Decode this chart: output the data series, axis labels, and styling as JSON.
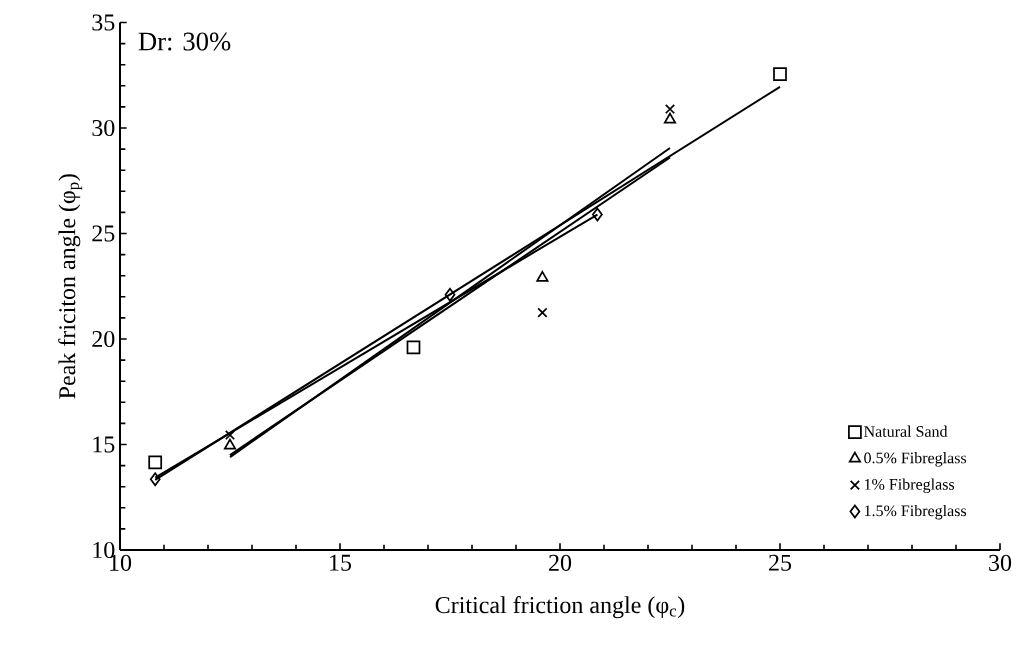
{
  "chart_data": {
    "type": "scatter",
    "xlabel": "Critical friction angle (φ$_{c}$)",
    "ylabel": "Peak friciton angle (φ$_{p}$)",
    "annotations": [
      "Dr: 30%"
    ],
    "xlim": [
      10,
      30
    ],
    "xticks": [
      10,
      15,
      20,
      25,
      30
    ],
    "ylim": [
      10,
      35
    ],
    "yticks": [
      10,
      15,
      20,
      25,
      30,
      35
    ],
    "grid": false,
    "legend": "bottom right",
    "series": [
      {
        "name": "Natural Sand",
        "color": "#000000",
        "marker": "square",
        "x": [
          10.8,
          16.67,
          25
        ],
        "values": [
          14.15,
          19.6,
          32.55
        ]
      },
      {
        "name": "0.5% Fibreglass",
        "color": "#000000",
        "marker": "triangle",
        "x": [
          12.5,
          19.6,
          22.5
        ],
        "values": [
          14.95,
          22.9,
          30.4
        ]
      },
      {
        "name": "1% Fibreglass",
        "color": "#000000",
        "marker": "cross",
        "x": [
          12.5,
          19.6,
          22.5
        ],
        "values": [
          15.45,
          21.25,
          30.9
        ]
      },
      {
        "name": "1.5% Fibreglass",
        "color": "#000000",
        "marker": "diamond",
        "x": [
          10.8,
          17.5,
          20.85
        ],
        "values": [
          13.35,
          22.1,
          25.9
        ]
      },
      {
        "type": "line",
        "color": "#000000",
        "marker": "none",
        "line_style": "solid",
        "x": [
          10.8,
          25
        ],
        "values": [
          13.32,
          31.95
        ]
      },
      {
        "type": "line",
        "color": "#000000",
        "marker": "none",
        "line_style": "solid",
        "x": [
          12.5,
          22.5
        ],
        "values": [
          14.4,
          29.05
        ]
      },
      {
        "type": "line",
        "color": "#000000",
        "marker": "none",
        "line_style": "solid",
        "x": [
          12.5,
          22.5
        ],
        "values": [
          14.5,
          28.6
        ]
      },
      {
        "type": "line",
        "color": "#000000",
        "marker": "none",
        "line_style": "solid",
        "x": [
          10.8,
          20.85
        ],
        "values": [
          13.43,
          25.9
        ]
      }
    ]
  }
}
